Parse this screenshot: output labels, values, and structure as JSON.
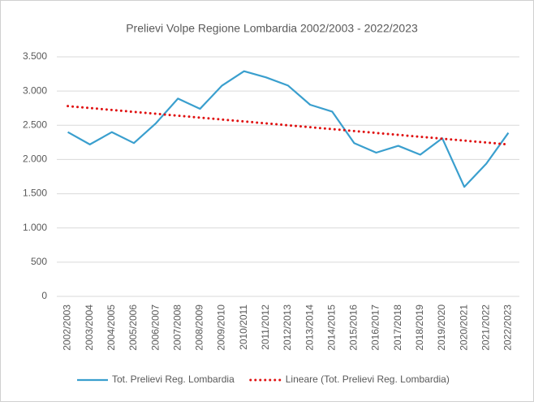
{
  "chart_data": {
    "type": "line",
    "title": "Prelievi Volpe Regione Lombardia 2002/2003 - 2022/2023",
    "categories": [
      "2002/2003",
      "2003/2004",
      "2004/2005",
      "2005/2006",
      "2006/2007",
      "2007/2008",
      "2008/2009",
      "2009/2010",
      "2010/2011",
      "2011/2012",
      "2012/2013",
      "2013/2014",
      "2014/2015",
      "2015/2016",
      "2016/2017",
      "2017/2018",
      "2018/2019",
      "2019/2020",
      "2020/2021",
      "2021/2022",
      "2022/2023"
    ],
    "series": [
      {
        "name": "Tot. Prelievi Reg. Lombardia",
        "color": "#3a9fce",
        "style": "solid",
        "values": [
          2400,
          2220,
          2400,
          2240,
          2530,
          2890,
          2740,
          3080,
          3290,
          3200,
          3080,
          2800,
          2700,
          2240,
          2100,
          2200,
          2070,
          2310,
          1600,
          1940,
          2390
        ]
      },
      {
        "name": "Lineare (Tot. Prelievi Reg. Lombardia)",
        "color": "#e01010",
        "style": "dotted",
        "values": [
          2780,
          2752,
          2724,
          2696,
          2668,
          2640,
          2612,
          2584,
          2556,
          2528,
          2500,
          2472,
          2444,
          2416,
          2388,
          2360,
          2332,
          2304,
          2276,
          2248,
          2220
        ]
      }
    ],
    "ylim": [
      0,
      3500
    ],
    "yticks": [
      0,
      500,
      {
        "value": 1000,
        "label": "1.000"
      },
      {
        "value": 1500,
        "label": "1.500"
      },
      {
        "value": 2000,
        "label": "2.000"
      },
      {
        "value": 2500,
        "label": "2.500"
      },
      {
        "value": 3000,
        "label": "3.000"
      },
      {
        "value": 3500,
        "label": "3.500"
      }
    ],
    "grid": true,
    "legend": "bottom"
  }
}
